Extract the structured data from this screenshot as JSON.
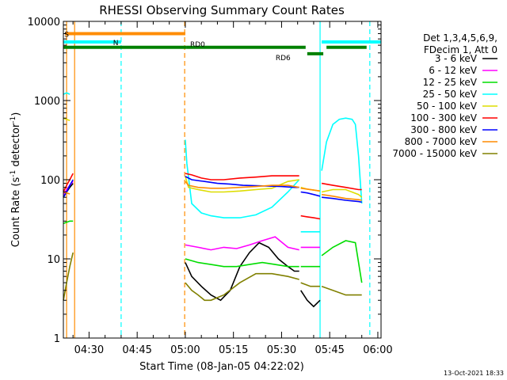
{
  "chart_data": {
    "type": "line",
    "title": "RHESSI Observing Summary Count Rates",
    "xlabel": "Start Time (08-Jan-05 04:22:02)",
    "ylabel_main": "Count Rate (s",
    "ylabel_sup1": "-1",
    "ylabel_mid": " detector",
    "ylabel_sup2": "-1",
    "ylabel_end": ")",
    "x_axis_units": "minutes since 04:22:02",
    "xlim": [
      0,
      99
    ],
    "ylim": [
      1,
      10000
    ],
    "yscale": "log",
    "x_ticks": [
      {
        "value": 8.0,
        "label": "04:30"
      },
      {
        "value": 23.0,
        "label": "04:45"
      },
      {
        "value": 38.0,
        "label": "05:00"
      },
      {
        "value": 53.0,
        "label": "05:15"
      },
      {
        "value": 68.0,
        "label": "05:30"
      },
      {
        "value": 83.0,
        "label": "05:45"
      },
      {
        "value": 98.0,
        "label": "06:00"
      }
    ],
    "y_ticks": [
      {
        "value": 1,
        "label": "1"
      },
      {
        "value": 10,
        "label": "10"
      },
      {
        "value": 100,
        "label": "100"
      },
      {
        "value": 1000,
        "label": "1000"
      },
      {
        "value": 10000,
        "label": "10000"
      }
    ],
    "legend_header": [
      "Det 1,3,4,5,6,9,",
      "FDecim 1, Att 0"
    ],
    "legend_placement": "right",
    "series": [
      {
        "name": "3 - 6 keV",
        "color": "#000000",
        "segments": [
          {
            "x": [
              0.0,
              1.0,
              2.0,
              3.0
            ],
            "y": [
              60,
              70,
              80,
              90
            ]
          },
          {
            "x": [
              38.0,
              40,
              43,
              46,
              49,
              52,
              55,
              58,
              61,
              64,
              67,
              70,
              72,
              73.5
            ],
            "y": [
              9,
              6,
              4.5,
              3.5,
              3,
              4,
              8,
              12,
              16,
              14,
              10,
              8,
              7,
              7
            ]
          },
          {
            "x": [
              74.0,
              76,
              78,
              80
            ],
            "y": [
              4,
              3,
              2.5,
              3
            ]
          }
        ]
      },
      {
        "name": "6 - 12 keV",
        "color": "#ff00ff",
        "segments": [
          {
            "x": [
              0.0,
              1.0,
              2.0,
              3.0
            ],
            "y": [
              65,
              75,
              85,
              95
            ]
          },
          {
            "x": [
              38.0,
              42,
              46,
              50,
              54,
              58,
              62,
              66,
              70,
              73.5
            ],
            "y": [
              15,
              14,
              13,
              14,
              13.5,
              15,
              17,
              19,
              14,
              13
            ]
          },
          {
            "x": [
              74.0,
              77,
              80
            ],
            "y": [
              14,
              14,
              14
            ]
          }
        ]
      },
      {
        "name": "12 - 25 keV",
        "color": "#00dd00",
        "segments": [
          {
            "x": [
              0.0,
              1.0,
              2.0,
              3.0
            ],
            "y": [
              28,
              29,
              30,
              30
            ]
          },
          {
            "x": [
              38.0,
              42,
              46,
              50,
              54,
              58,
              62,
              66,
              70,
              73.5
            ],
            "y": [
              10,
              9,
              8.5,
              8,
              8,
              8.5,
              9,
              8.5,
              8,
              8
            ]
          },
          {
            "x": [
              74.0,
              77,
              80
            ],
            "y": [
              8,
              8,
              8
            ]
          },
          {
            "x": [
              80.5,
              84,
              88,
              91,
              93
            ],
            "y": [
              11,
              14,
              17,
              16,
              5
            ]
          }
        ]
      },
      {
        "name": "25 - 50 keV",
        "color": "#00ffff",
        "segments": [
          {
            "x": [
              0.0,
              1.0,
              2.0
            ],
            "y": [
              1200,
              1250,
              1200
            ]
          },
          {
            "x": [
              38.0,
              38.5,
              40,
              43,
              46,
              50,
              55,
              60,
              65,
              70,
              73.5
            ],
            "y": [
              320,
              160,
              50,
              38,
              35,
              33,
              33,
              36,
              45,
              70,
              100
            ]
          },
          {
            "x": [
              74.0,
              76,
              78,
              80
            ],
            "y": [
              22,
              22,
              22,
              22
            ]
          },
          {
            "x": [
              80.5,
              82,
              84,
              86,
              88,
              90,
              91,
              92,
              93
            ],
            "y": [
              130,
              300,
              500,
              580,
              600,
              580,
              500,
              200,
              50
            ]
          }
        ]
      },
      {
        "name": "50 - 100 keV",
        "color": "#dddd00",
        "segments": [
          {
            "x": [
              0.0,
              1.0,
              2.0
            ],
            "y": [
              600,
              580,
              560
            ]
          },
          {
            "x": [
              38.0,
              39,
              42,
              46,
              50,
              55,
              60,
              65,
              70,
              73.5
            ],
            "y": [
              110,
              80,
              75,
              70,
              70,
              72,
              75,
              78,
              95,
              100
            ]
          },
          {
            "x": [
              74.0,
              76,
              78,
              80
            ],
            "y": [
              80,
              76,
              74,
              72
            ]
          },
          {
            "x": [
              80.5,
              84,
              88,
              92,
              93
            ],
            "y": [
              70,
              75,
              75,
              65,
              60
            ]
          }
        ]
      },
      {
        "name": "100 - 300 keV",
        "color": "#ff0000",
        "segments": [
          {
            "x": [
              0.0,
              1.0,
              2.0,
              3.0
            ],
            "y": [
              70,
              85,
              100,
              120
            ]
          },
          {
            "x": [
              38.0,
              40,
              43,
              46,
              50,
              55,
              60,
              65,
              70,
              73.5
            ],
            "y": [
              120,
              115,
              105,
              100,
              100,
              105,
              108,
              112,
              112,
              112
            ]
          },
          {
            "x": [
              74.0,
              76,
              78,
              80
            ],
            "y": [
              35,
              34,
              33,
              32
            ]
          },
          {
            "x": [
              80.5,
              84,
              88,
              92,
              93
            ],
            "y": [
              90,
              85,
              80,
              75,
              75
            ]
          }
        ]
      },
      {
        "name": "300 - 800 keV",
        "color": "#0000ff",
        "segments": [
          {
            "x": [
              0.0,
              1.0,
              2.0,
              3.0
            ],
            "y": [
              60,
              70,
              85,
              100
            ]
          },
          {
            "x": [
              38.0,
              40,
              44,
              48,
              52,
              56,
              60,
              64,
              68,
              72,
              73.5
            ],
            "y": [
              110,
              100,
              95,
              90,
              88,
              85,
              84,
              83,
              82,
              80,
              80
            ]
          },
          {
            "x": [
              74.0,
              76,
              78,
              80
            ],
            "y": [
              70,
              68,
              65,
              62
            ]
          },
          {
            "x": [
              80.5,
              84,
              88,
              92,
              93
            ],
            "y": [
              60,
              58,
              55,
              53,
              52
            ]
          }
        ]
      },
      {
        "name": "800 - 7000 keV",
        "color": "#ff8c00",
        "segments": [
          {
            "x": [
              0.0,
              1.0,
              2.0
            ],
            "y": [
              70,
              68,
              66
            ]
          },
          {
            "x": [
              38.0,
              39,
              42,
              46,
              50,
              55,
              60,
              65,
              70,
              73.5
            ],
            "y": [
              95,
              85,
              80,
              78,
              78,
              80,
              82,
              85,
              85,
              80
            ]
          },
          {
            "x": [
              74.0,
              76,
              78,
              80
            ],
            "y": [
              78,
              76,
              74,
              72
            ]
          },
          {
            "x": [
              80.5,
              84,
              88,
              92,
              93
            ],
            "y": [
              65,
              62,
              58,
              56,
              55
            ]
          }
        ]
      },
      {
        "name": "7000 - 15000 keV",
        "color": "#808000",
        "segments": [
          {
            "x": [
              0.0,
              1.0,
              2.0,
              3.0
            ],
            "y": [
              3,
              5,
              8,
              12
            ]
          },
          {
            "x": [
              38.0,
              40,
              42,
              44,
              46,
              50,
              55,
              60,
              65,
              70,
              73.5
            ],
            "y": [
              5,
              4,
              3.5,
              3,
              3,
              3.5,
              5,
              6.5,
              6.5,
              6,
              5.5
            ]
          },
          {
            "x": [
              74.0,
              77,
              80
            ],
            "y": [
              5,
              4.5,
              4.5
            ]
          },
          {
            "x": [
              80.5,
              84,
              88,
              92,
              93
            ],
            "y": [
              4.5,
              4,
              3.5,
              3.5,
              3.5
            ]
          }
        ]
      }
    ],
    "flag_bars": [
      {
        "label": "S",
        "color": "#ff8c00",
        "y": 7000,
        "segments": [
          [
            0.5,
            38.0
          ]
        ]
      },
      {
        "label": "N",
        "color": "#00ffff",
        "y": 5500,
        "segments": [
          [
            0.0,
            18.0
          ],
          [
            80.5,
            99.0
          ]
        ]
      },
      {
        "label": "RD0",
        "color": "#008000",
        "y": 4700,
        "segments": [
          [
            0.0,
            38.5
          ],
          [
            38.5,
            75.5
          ],
          [
            82.0,
            94.5
          ]
        ]
      },
      {
        "label": "RD6",
        "color": "#008000",
        "y": 3900,
        "segments": [
          [
            76.0,
            81.0
          ]
        ]
      }
    ],
    "vertical_lines": [
      {
        "x": 1.0,
        "color": "#ff8c00",
        "style": "solid"
      },
      {
        "x": 3.5,
        "color": "#ff8c00",
        "style": "solid"
      },
      {
        "x": 18.0,
        "color": "#00ffff",
        "style": "dashed"
      },
      {
        "x": 37.8,
        "color": "#ff8c00",
        "style": "dashed"
      },
      {
        "x": 80.0,
        "color": "#00ffff",
        "style": "solid"
      },
      {
        "x": 95.5,
        "color": "#00ffff",
        "style": "dashed"
      }
    ],
    "footer_stamp": "13-Oct-2021 18:33"
  }
}
